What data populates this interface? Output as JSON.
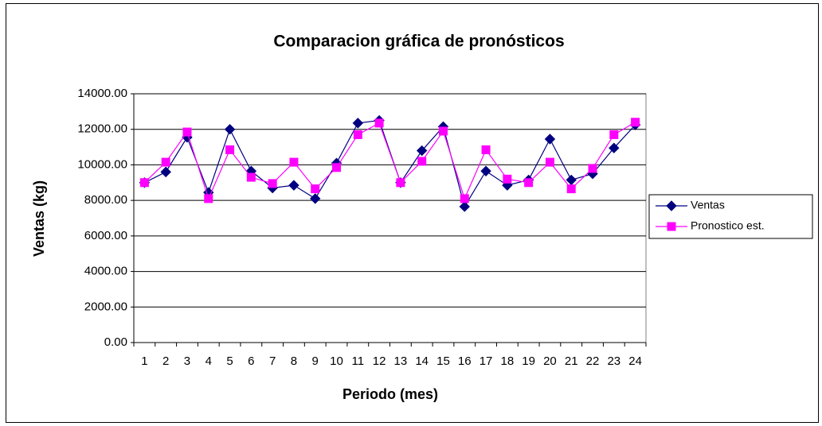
{
  "chart_data": {
    "type": "line",
    "title": "Comparacion gráfica de pronósticos",
    "x_label": "Periodo (mes)",
    "y_label": "Ventas (kg)",
    "categories": [
      "1",
      "2",
      "3",
      "4",
      "5",
      "6",
      "7",
      "8",
      "9",
      "10",
      "11",
      "12",
      "13",
      "14",
      "15",
      "16",
      "17",
      "18",
      "19",
      "20",
      "21",
      "22",
      "23",
      "24"
    ],
    "series": [
      {
        "name": "Ventas",
        "color": "#000080",
        "marker": "diamond",
        "values": [
          9000,
          9600,
          11550,
          8450,
          12000,
          9650,
          8700,
          8850,
          8100,
          10100,
          12350,
          12500,
          9000,
          10800,
          12150,
          7650,
          9650,
          8850,
          9150,
          11450,
          9150,
          9500,
          10950,
          12250
        ]
      },
      {
        "name": "Pronostico est.",
        "color": "#ff00ff",
        "marker": "square",
        "values": [
          9000,
          10150,
          11850,
          8100,
          10850,
          9300,
          8950,
          10150,
          8650,
          9850,
          11700,
          12350,
          9000,
          10200,
          11900,
          8100,
          10850,
          9200,
          9000,
          10150,
          8650,
          9800,
          11700,
          12400
        ]
      }
    ],
    "ylim": [
      0,
      14000
    ],
    "yticks": [
      {
        "value": 0,
        "label": "0.00"
      },
      {
        "value": 2000,
        "label": "2000.00"
      },
      {
        "value": 4000,
        "label": "4000.00"
      },
      {
        "value": 6000,
        "label": "6000.00"
      },
      {
        "value": 8000,
        "label": "8000.00"
      },
      {
        "value": 10000,
        "label": "10000.00"
      },
      {
        "value": 12000,
        "label": "12000.00"
      },
      {
        "value": 14000,
        "label": "14000.00"
      }
    ],
    "grid": true,
    "legend": "right"
  }
}
